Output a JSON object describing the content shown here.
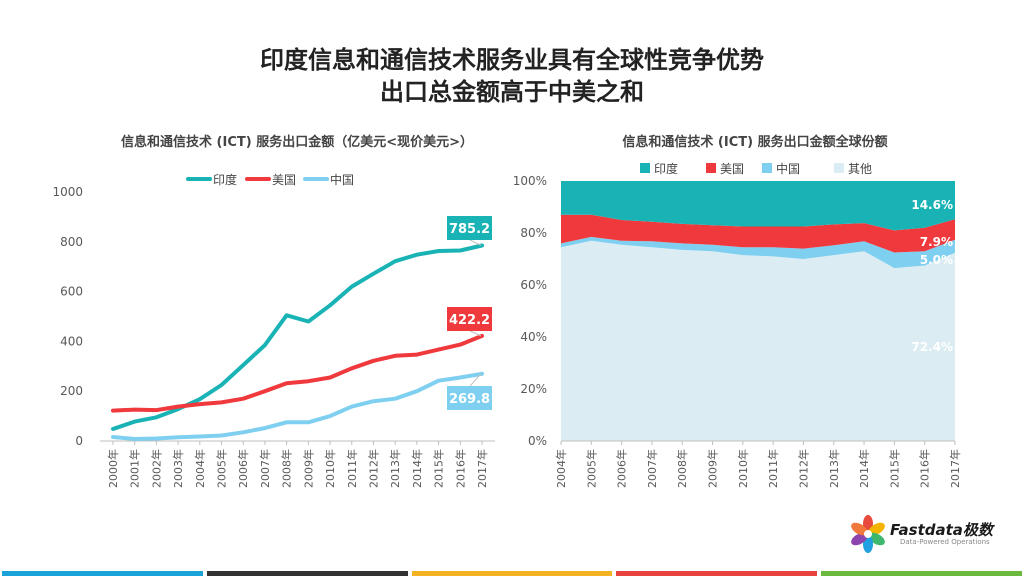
{
  "title": {
    "line1": "印度信息和通信技术服务业具有全球性竞争优势",
    "line2": "出口总金额高于中美之和"
  },
  "brand": {
    "name": "Fastdata极数",
    "tagline": "Data-Powered Operations",
    "petal_colors": [
      "#e84a3c",
      "#f4b400",
      "#3db86c",
      "#1fa0e0",
      "#8e44ad",
      "#f0783c"
    ]
  },
  "footer_colors": [
    "#1aa3d9",
    "#333333",
    "#f5b323",
    "#e8433f",
    "#6cb93f"
  ],
  "chart_data": [
    {
      "type": "line",
      "title": "信息和通信技术 (ICT) 服务出口金额（亿美元<现价美元>）",
      "x": [
        "2000年",
        "2001年",
        "2002年",
        "2003年",
        "2004年",
        "2005年",
        "2006年",
        "2007年",
        "2008年",
        "2009年",
        "2010年",
        "2011年",
        "2012年",
        "2013年",
        "2014年",
        "2015年",
        "2016年",
        "2017年"
      ],
      "ylim": [
        0,
        1000
      ],
      "yticks": [
        "0",
        "200",
        "400",
        "600",
        "800",
        "1000"
      ],
      "legend": "top-center",
      "grid": false,
      "series": [
        {
          "name": "印度",
          "color": "#1ab3b5",
          "values": [
            48,
            78,
            95,
            128,
            168,
            225,
            305,
            385,
            505,
            480,
            545,
            620,
            672,
            722,
            748,
            763,
            765,
            785.2
          ],
          "end_label": "785.2"
        },
        {
          "name": "美国",
          "color": "#f0393c",
          "values": [
            122,
            126,
            124,
            138,
            148,
            155,
            170,
            200,
            232,
            240,
            255,
            292,
            322,
            342,
            347,
            367,
            387,
            422.2
          ],
          "end_label": "422.2"
        },
        {
          "name": "中国",
          "color": "#7fcff0",
          "values": [
            16,
            8,
            10,
            15,
            18,
            22,
            35,
            52,
            75,
            75,
            100,
            138,
            160,
            170,
            200,
            242,
            255,
            269.8
          ],
          "end_label": "269.8"
        }
      ]
    },
    {
      "type": "area",
      "stacked": true,
      "title": "信息和通信技术 (ICT) 服务出口金额全球份额",
      "x": [
        "2004年",
        "2005年",
        "2006年",
        "2007年",
        "2008年",
        "2009年",
        "2010年",
        "2011年",
        "2012年",
        "2013年",
        "2014年",
        "2015年",
        "2016年",
        "2017年"
      ],
      "ylim": [
        0,
        100
      ],
      "yticks": [
        "0%",
        "20%",
        "40%",
        "60%",
        "80%",
        "100%"
      ],
      "legend": "top",
      "grid": false,
      "series": [
        {
          "name": "其他",
          "color": "#dcecf3",
          "values": [
            74.5,
            77.0,
            75.5,
            74.5,
            73.5,
            73.0,
            71.5,
            71.0,
            70.0,
            71.5,
            73.0,
            66.5,
            67.5,
            72.4
          ],
          "end_label": "72.4%"
        },
        {
          "name": "中国",
          "color": "#7fcff0",
          "values": [
            1.5,
            1.5,
            1.5,
            2.3,
            2.5,
            2.5,
            3.0,
            3.5,
            4.0,
            3.8,
            3.8,
            6.0,
            5.5,
            5.0
          ],
          "end_label": "5.0%"
        },
        {
          "name": "美国",
          "color": "#f0393c",
          "values": [
            11.0,
            8.5,
            8.0,
            7.5,
            7.5,
            7.5,
            8.0,
            8.0,
            8.5,
            8.0,
            7.0,
            8.5,
            9.0,
            7.9
          ],
          "end_label": "7.9%"
        },
        {
          "name": "印度",
          "color": "#1ab3b5",
          "values": [
            13.0,
            13.0,
            15.0,
            15.7,
            16.5,
            17.0,
            17.5,
            17.5,
            17.5,
            16.7,
            16.2,
            19.0,
            18.0,
            14.6
          ],
          "end_label": "14.6%"
        }
      ],
      "legend_order": [
        "印度",
        "美国",
        "中国",
        "其他"
      ]
    }
  ]
}
